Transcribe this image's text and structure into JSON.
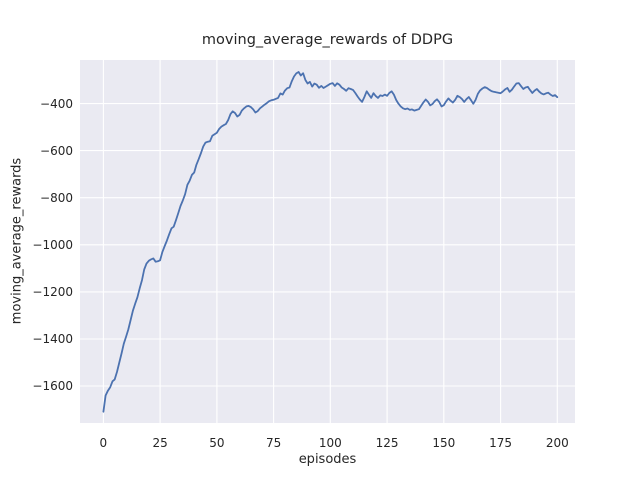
{
  "chart_data": {
    "type": "line",
    "title": "moving_average_rewards of DDPG",
    "xlabel": "episodes",
    "ylabel": "moving_average_rewards",
    "x_ticks": [
      0,
      25,
      50,
      75,
      100,
      125,
      150,
      175,
      200
    ],
    "y_ticks": [
      -400,
      -600,
      -800,
      -1000,
      -1200,
      -1400,
      -1600
    ],
    "xlim": [
      -10.3,
      207.8
    ],
    "ylim": [
      -1757,
      -215
    ],
    "grid": true,
    "legend_position": "none",
    "style": {
      "axes_background": "#eaeaf2",
      "grid_color": "#ffffff",
      "line_color": "#4c72b0",
      "text_color": "#262626",
      "line_width": 1.8
    },
    "series": [
      {
        "name": "moving_average_rewards",
        "x_start": 0,
        "x_step": 1,
        "values": [
          -1709,
          -1640,
          -1620,
          -1605,
          -1580,
          -1572,
          -1540,
          -1500,
          -1462,
          -1420,
          -1390,
          -1360,
          -1320,
          -1280,
          -1250,
          -1223,
          -1185,
          -1150,
          -1105,
          -1080,
          -1068,
          -1062,
          -1058,
          -1072,
          -1070,
          -1066,
          -1030,
          -1005,
          -982,
          -955,
          -930,
          -923,
          -895,
          -865,
          -835,
          -812,
          -785,
          -745,
          -728,
          -703,
          -693,
          -660,
          -636,
          -610,
          -583,
          -566,
          -562,
          -560,
          -537,
          -530,
          -524,
          -508,
          -498,
          -492,
          -487,
          -470,
          -445,
          -433,
          -440,
          -455,
          -448,
          -430,
          -420,
          -412,
          -410,
          -415,
          -425,
          -438,
          -432,
          -420,
          -413,
          -405,
          -398,
          -390,
          -386,
          -384,
          -380,
          -376,
          -357,
          -362,
          -345,
          -335,
          -332,
          -305,
          -285,
          -272,
          -266,
          -281,
          -271,
          -300,
          -315,
          -308,
          -328,
          -315,
          -320,
          -333,
          -325,
          -334,
          -328,
          -322,
          -316,
          -313,
          -325,
          -314,
          -320,
          -332,
          -338,
          -346,
          -335,
          -338,
          -342,
          -355,
          -370,
          -383,
          -393,
          -372,
          -348,
          -362,
          -376,
          -356,
          -368,
          -376,
          -365,
          -368,
          -362,
          -367,
          -355,
          -348,
          -362,
          -385,
          -400,
          -412,
          -420,
          -424,
          -421,
          -427,
          -425,
          -430,
          -427,
          -424,
          -410,
          -395,
          -383,
          -392,
          -408,
          -402,
          -390,
          -382,
          -394,
          -412,
          -407,
          -391,
          -378,
          -388,
          -396,
          -384,
          -367,
          -372,
          -381,
          -393,
          -381,
          -372,
          -386,
          -401,
          -384,
          -358,
          -344,
          -336,
          -330,
          -334,
          -341,
          -347,
          -350,
          -352,
          -354,
          -356,
          -349,
          -340,
          -334,
          -350,
          -341,
          -327,
          -315,
          -313,
          -326,
          -338,
          -332,
          -329,
          -343,
          -355,
          -345,
          -338,
          -349,
          -357,
          -361,
          -357,
          -354,
          -362,
          -368,
          -364,
          -373
        ]
      }
    ]
  }
}
